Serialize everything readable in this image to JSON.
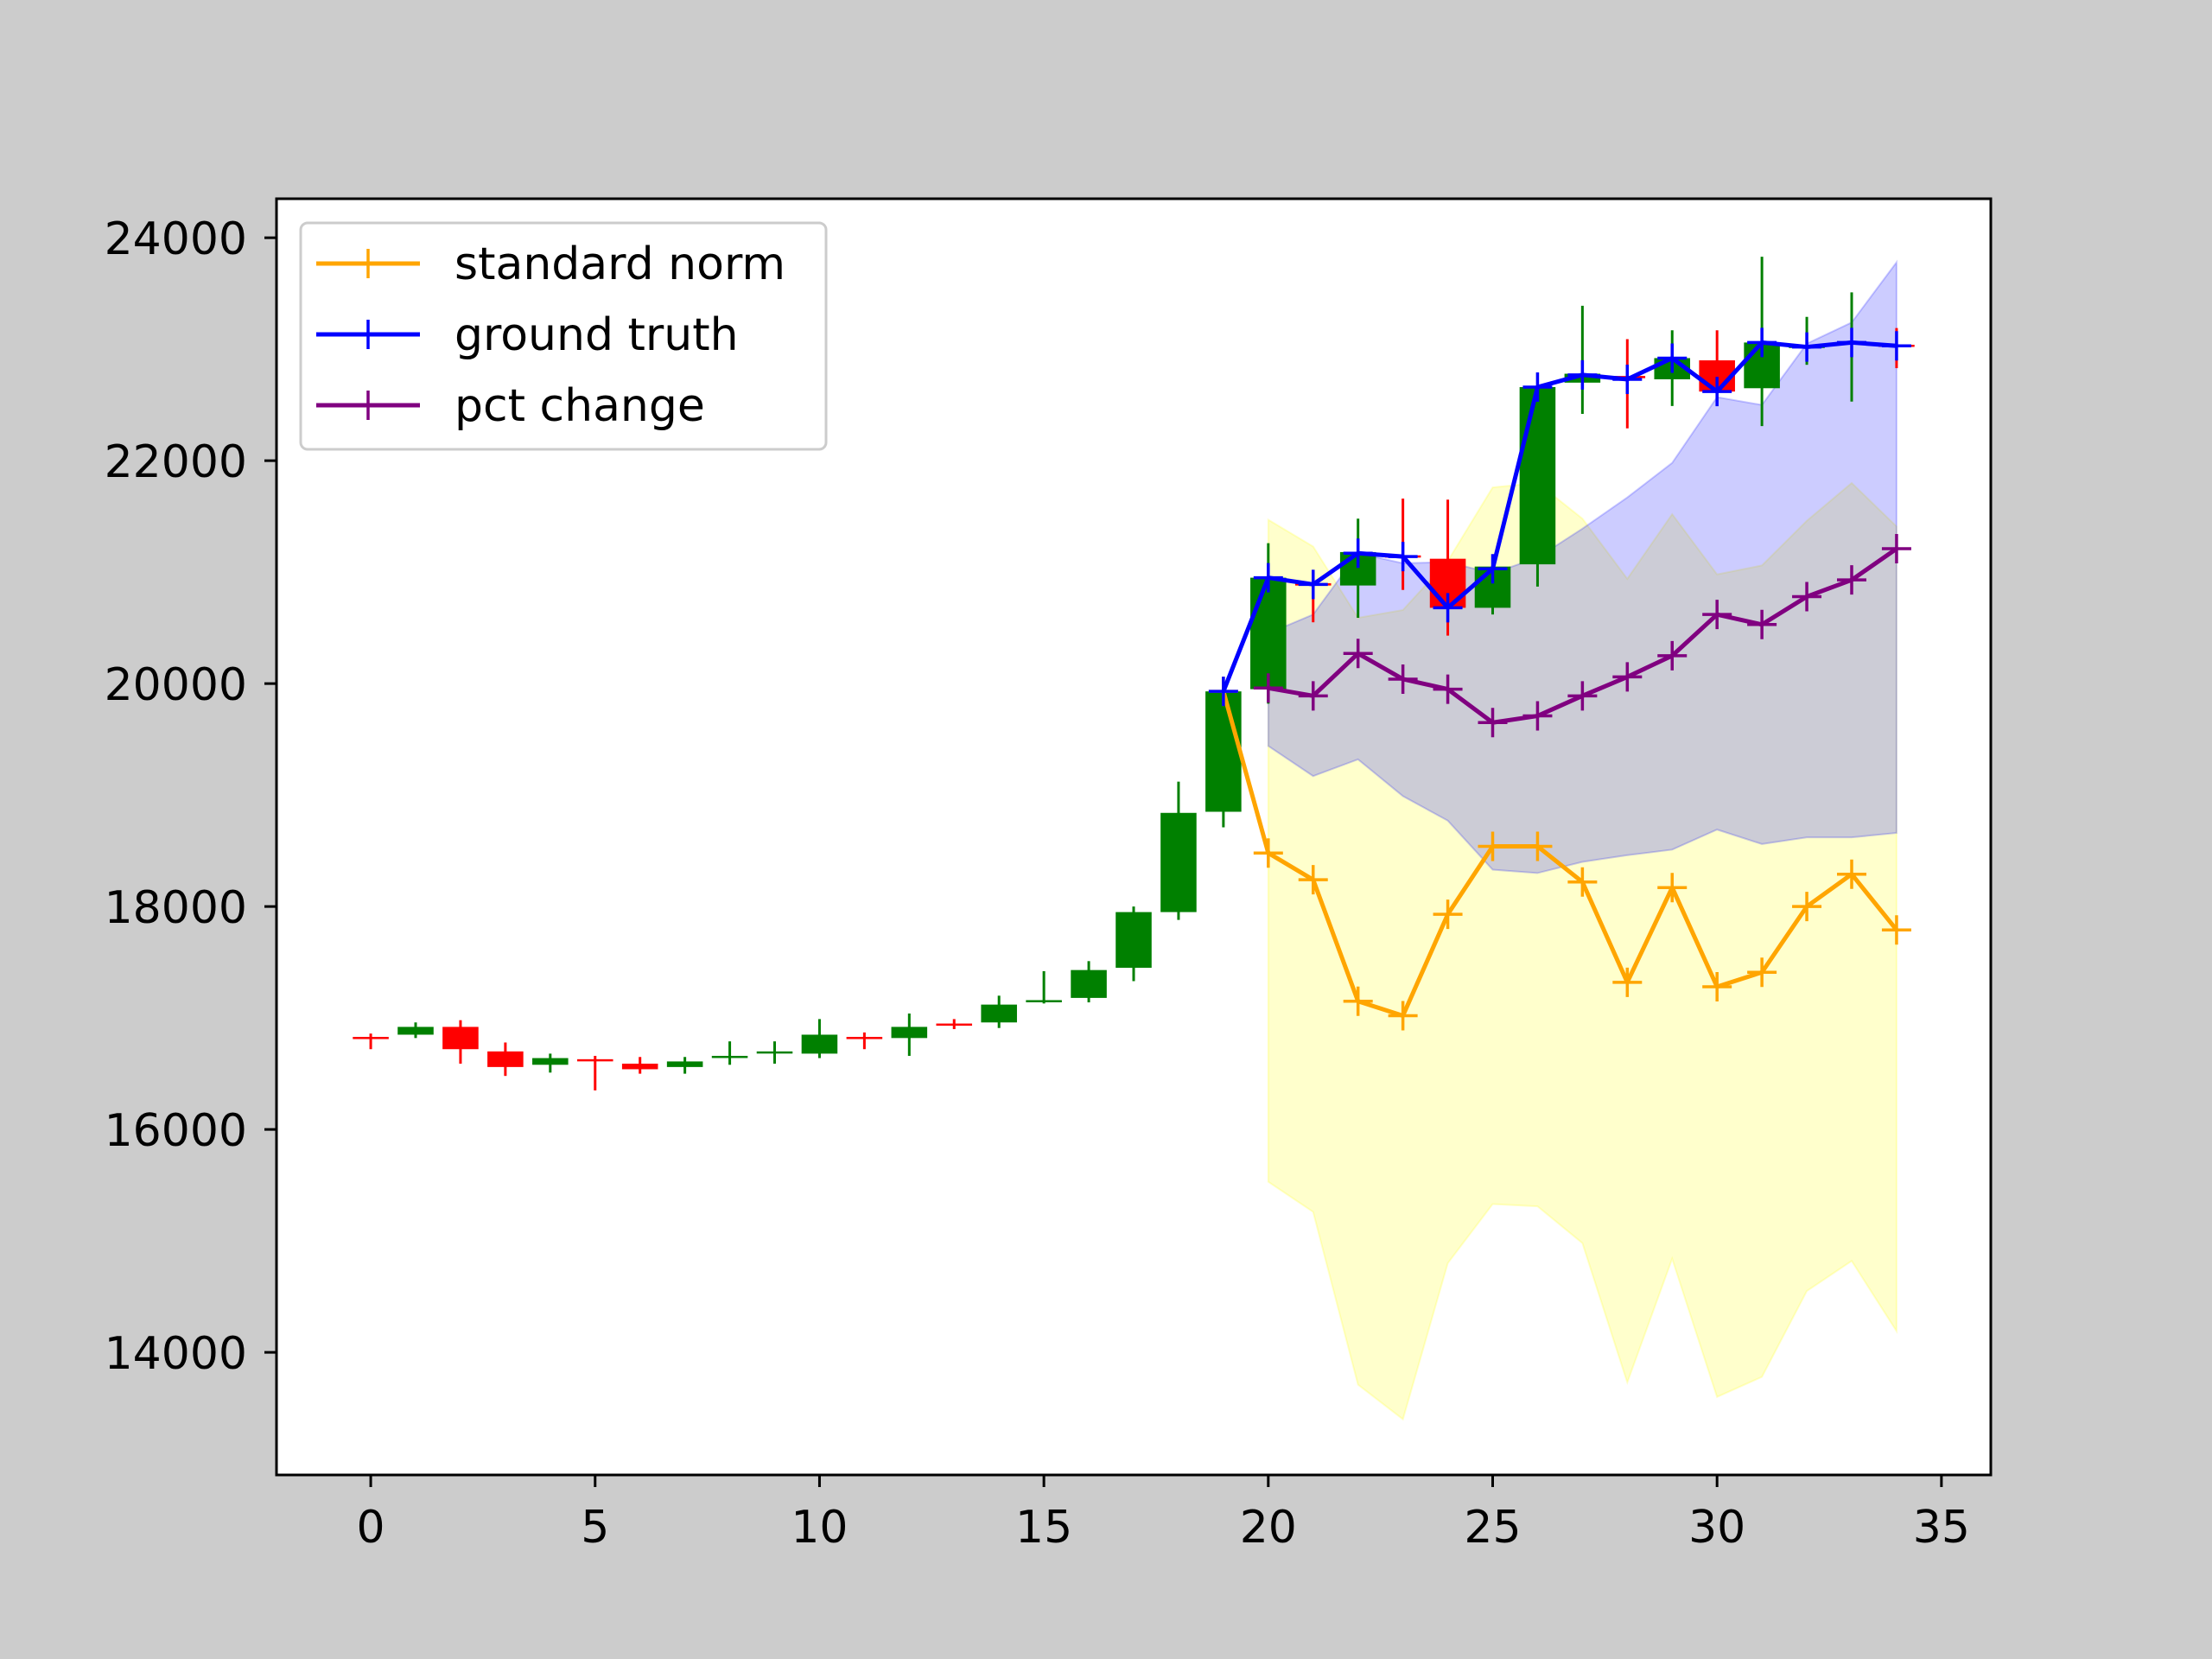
{
  "chart_data": {
    "type": "line",
    "title": "",
    "xlabel": "",
    "ylabel": "",
    "xlim": [
      -2.1,
      36.1
    ],
    "ylim": [
      12900,
      24350
    ],
    "x_ticks": [
      0,
      5,
      10,
      15,
      20,
      25,
      30,
      35
    ],
    "y_ticks": [
      14000,
      16000,
      18000,
      20000,
      22000,
      24000
    ],
    "x_tick_labels": [
      "0",
      "5",
      "10",
      "15",
      "20",
      "25",
      "30",
      "35"
    ],
    "y_tick_labels": [
      "14000",
      "16000",
      "18000",
      "20000",
      "22000",
      "24000"
    ],
    "grid": false,
    "legend_position": "upper-left",
    "legend": [
      {
        "label": "standard norm",
        "color": "#ffa500"
      },
      {
        "label": "ground truth",
        "color": "#0000ff"
      },
      {
        "label": "pct change",
        "color": "#800080"
      }
    ],
    "colors": {
      "up": "#008000",
      "down": "#ff0000",
      "yellow_band": "#ffff00",
      "blue_band": "#0000ff"
    },
    "candles": {
      "x": [
        0,
        1,
        2,
        3,
        4,
        5,
        6,
        7,
        8,
        9,
        10,
        11,
        12,
        13,
        14,
        15,
        16,
        17,
        18,
        19,
        20,
        21,
        22,
        23,
        24,
        25,
        26,
        27,
        28,
        29,
        30,
        31,
        32,
        33,
        34
      ],
      "open": [
        16830,
        16850,
        16920,
        16700,
        16580,
        16630,
        16590,
        16560,
        16650,
        16690,
        16680,
        16830,
        16820,
        16950,
        16960,
        17150,
        17180,
        17450,
        17950,
        18850,
        19950,
        20900,
        20880,
        21150,
        21120,
        20680,
        21070,
        22700,
        22760,
        22730,
        22900,
        22650,
        23020,
        23050,
        23040
      ],
      "close": [
        16820,
        16920,
        16720,
        16560,
        16640,
        16620,
        16540,
        16610,
        16660,
        16700,
        16850,
        16820,
        16920,
        16940,
        17120,
        17160,
        17430,
        17950,
        18840,
        19930,
        20950,
        20880,
        21180,
        21140,
        20680,
        21050,
        22660,
        22780,
        22740,
        22920,
        22620,
        23060,
        23030,
        23060,
        23030
      ],
      "high": [
        16860,
        16960,
        16980,
        16780,
        16680,
        16660,
        16650,
        16650,
        16790,
        16790,
        16990,
        16870,
        17040,
        16990,
        17200,
        17420,
        17510,
        18000,
        19120,
        20020,
        21260,
        21020,
        21480,
        21660,
        21650,
        21100,
        22790,
        23390,
        23090,
        23170,
        23170,
        23830,
        23290,
        23510,
        23190
      ],
      "low": [
        16720,
        16820,
        16590,
        16480,
        16510,
        16350,
        16500,
        16500,
        16580,
        16590,
        16640,
        16720,
        16660,
        16900,
        16910,
        17130,
        17140,
        17330,
        17880,
        18710,
        19820,
        20550,
        20590,
        20840,
        20430,
        20620,
        20870,
        22420,
        22290,
        22490,
        22530,
        22310,
        22860,
        22530,
        22830
      ]
    },
    "series": [
      {
        "name": "standard norm",
        "color": "#ffa500",
        "x": [
          19,
          20,
          21,
          22,
          23,
          24,
          25,
          26,
          27,
          28,
          29,
          30,
          31,
          32,
          33,
          34
        ],
        "values": [
          19930,
          18480,
          18240,
          17150,
          17020,
          17930,
          18540,
          18540,
          18220,
          17320,
          18170,
          17280,
          17410,
          18000,
          18290,
          17790
        ]
      },
      {
        "name": "ground truth",
        "color": "#0000ff",
        "x": [
          19,
          20,
          21,
          22,
          23,
          24,
          25,
          26,
          27,
          28,
          29,
          30,
          31,
          32,
          33,
          34
        ],
        "values": [
          19930,
          20950,
          20890,
          21170,
          21140,
          20680,
          21030,
          22660,
          22770,
          22730,
          22920,
          22620,
          23060,
          23020,
          23060,
          23030
        ]
      },
      {
        "name": "pct change",
        "color": "#800080",
        "x": [
          20,
          21,
          22,
          23,
          24,
          25,
          26,
          27,
          28,
          29,
          30,
          31,
          32,
          33,
          34
        ],
        "values": [
          19960,
          19890,
          20270,
          20040,
          19950,
          19650,
          19710,
          19890,
          20060,
          20250,
          20620,
          20530,
          20780,
          20930,
          21210
        ]
      }
    ],
    "bands": [
      {
        "series": "standard norm",
        "color": "#ffff00",
        "x": [
          20,
          21,
          22,
          23,
          24,
          25,
          26,
          27,
          28,
          29,
          30,
          31,
          32,
          33,
          34
        ],
        "lower": [
          15530,
          15260,
          13710,
          13400,
          14800,
          15330,
          15310,
          14980,
          13730,
          14840,
          13600,
          13780,
          14550,
          14820,
          14190
        ],
        "upper": [
          21470,
          21230,
          20590,
          20660,
          21100,
          21760,
          21800,
          21480,
          20940,
          21520,
          20980,
          21060,
          21460,
          21800,
          21410
        ]
      },
      {
        "series": "pct change",
        "color": "#0000ff",
        "x": [
          20,
          21,
          22,
          23,
          24,
          25,
          26,
          27,
          28,
          29,
          30,
          31,
          32,
          33,
          34
        ],
        "lower": [
          19440,
          19170,
          19320,
          18990,
          18770,
          18330,
          18300,
          18400,
          18460,
          18510,
          18690,
          18560,
          18620,
          18620,
          18660
        ],
        "upper": [
          20450,
          20620,
          21170,
          21080,
          21090,
          20990,
          21130,
          21390,
          21670,
          21980,
          22570,
          22500,
          23050,
          23240,
          23780
        ]
      }
    ]
  }
}
